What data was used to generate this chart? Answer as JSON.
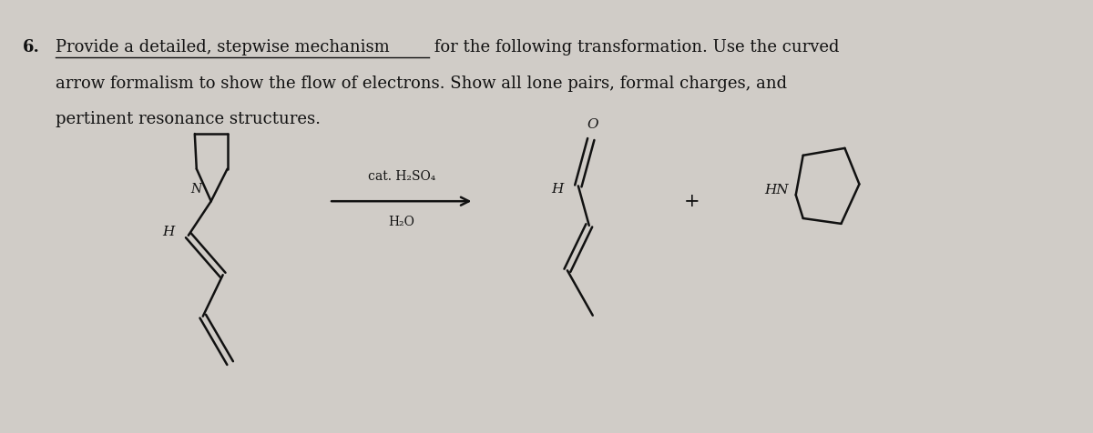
{
  "background_color": "#d0ccc7",
  "text_color": "#111111",
  "title_number": "6.",
  "line1_underlined": "Provide a detailed, stepwise mechanism",
  "line1_rest": " for the following transformation. Use the curved",
  "line2": "arrow formalism to show the flow of electrons. Show all lone pairs, formal charges, and",
  "line3": "pertinent resonance structures.",
  "reagent_line1": "cat. H₂SO₄",
  "reagent_line2": "H₂O",
  "plus_sign": "+",
  "label_HN": "HN",
  "label_H_left": "H",
  "label_H_right": "H",
  "label_O": "O",
  "label_N": "N",
  "figsize": [
    12.0,
    4.76
  ],
  "dpi": 100
}
